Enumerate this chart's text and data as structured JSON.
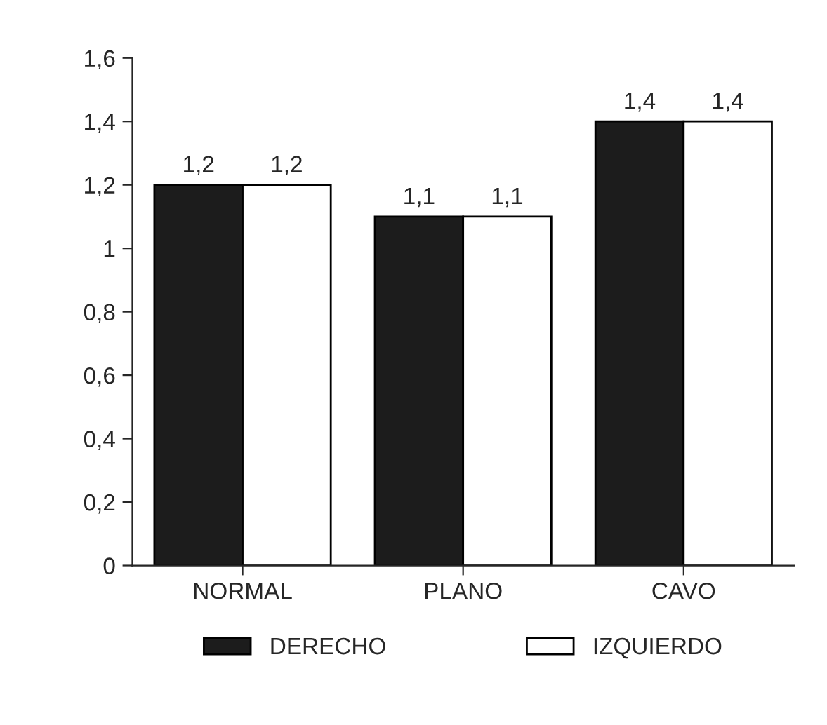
{
  "chart_data": {
    "type": "bar",
    "categories": [
      "NORMAL",
      "PLANO",
      "CAVO"
    ],
    "series": [
      {
        "name": "DERECHO",
        "color": "#1c1c1c",
        "values": [
          1.2,
          1.1,
          1.4
        ],
        "value_labels": [
          "1,2",
          "1,1",
          "1,4"
        ]
      },
      {
        "name": "IZQUIERDO",
        "color": "#ffffff",
        "values": [
          1.2,
          1.1,
          1.4
        ],
        "value_labels": [
          "1,2",
          "1,1",
          "1,4"
        ]
      }
    ],
    "ylim": [
      0,
      1.6
    ],
    "yticks": [
      0,
      {
        "value": 0.2,
        "label": "0,2"
      },
      {
        "value": 0.4,
        "label": "0,4"
      },
      {
        "value": 0.6,
        "label": "0,6"
      },
      {
        "value": 0.8,
        "label": "0,8"
      },
      1,
      {
        "value": 1.2,
        "label": "1,2"
      },
      {
        "value": 1.4,
        "label": "1,4"
      },
      {
        "value": 1.6,
        "label": "1,6"
      }
    ],
    "grid": false,
    "legend": "bottom"
  }
}
